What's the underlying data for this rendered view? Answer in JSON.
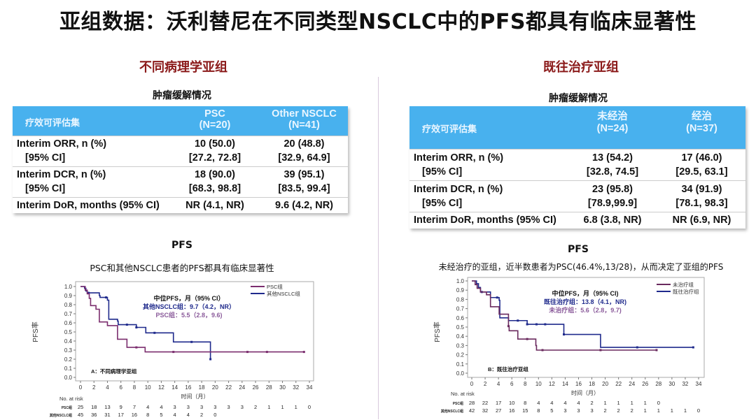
{
  "title": "亚组数据：沃利替尼在不同类型NSCLC中的PFS都具有临床显著性",
  "left": {
    "section": "不同病理学亚组",
    "table_caption": "肿瘤缓解情况",
    "table": {
      "headers": [
        [
          "疗效可评估集",
          ""
        ],
        [
          "PSC",
          "(N=20)"
        ],
        [
          "Other NSCLC",
          "(N=41)"
        ]
      ],
      "rows": [
        {
          "label": "Interim ORR, n (%)",
          "sublabel": "[95% CI]",
          "c1": "10 (50.0)",
          "c1b": "[27.2, 72.8]",
          "c2": "20 (48.8)",
          "c2b": "[32.9, 64.9]"
        },
        {
          "label": "Interim DCR, n (%)",
          "sublabel": "[95% CI]",
          "c1": "18 (90.0)",
          "c1b": "[68.3, 98.8]",
          "c2": "39 (95.1)",
          "c2b": "[83.5, 99.4]"
        },
        {
          "label": "Interim DoR, months (95% CI)",
          "c1": "NR (4.1, NR)",
          "c2": "9.6 (4.2, NR)"
        }
      ]
    },
    "pfs_label": "PFS",
    "pfs_subtitle": "PSC和其他NSCLC患者的PFS都具有临床显著性"
  },
  "right": {
    "section": "既往治疗亚组",
    "table_caption": "肿瘤缓解情况",
    "table": {
      "headers": [
        [
          "疗效可评估集",
          ""
        ],
        [
          "未经治",
          "(N=24)"
        ],
        [
          "经治",
          "(N=37)"
        ]
      ],
      "rows": [
        {
          "label": "Interim ORR, n (%)",
          "sublabel": "[95% CI]",
          "c1": "13 (54.2)",
          "c1b": "[32.8, 74.5]",
          "c2": "17 (46.0)",
          "c2b": "[29.5, 63.1]"
        },
        {
          "label": "Interim DCR, n (%)",
          "sublabel": "[95% CI]",
          "c1": "23 (95.8)",
          "c1b": "[78.9,99.9]",
          "c2": "34 (91.9)",
          "c2b": "[78.1, 98.3]"
        },
        {
          "label": "Interim DoR, months (95% CI)",
          "c1": "6.8 (3.8, NR)",
          "c2": "NR (6.9, NR)"
        }
      ]
    },
    "pfs_label": "PFS",
    "pfs_subtitle": "未经治疗的亚组，近半数患者为PSC(46.4%,13/28)，从而决定了亚组的PFS"
  },
  "chart_data": [
    {
      "type": "line",
      "title": "中位PFS，月（95% CI）",
      "panel_label": "A：不同病理学亚组",
      "xlabel": "时间（月）",
      "ylabel": "PFS率",
      "xlim": [
        0,
        34
      ],
      "ylim": [
        0,
        1
      ],
      "xticks": [
        0,
        2,
        4,
        6,
        8,
        10,
        12,
        14,
        16,
        18,
        20,
        22,
        24,
        26,
        28,
        30,
        32,
        34
      ],
      "yticks": [
        "0.0",
        "0.1",
        "0.2",
        "0.3",
        "0.4",
        "0.5",
        "0.6",
        "0.7",
        "0.8",
        "0.9",
        "1.0"
      ],
      "risk_label": "No. at risk",
      "series": [
        {
          "name": "PSC组",
          "color": "#7b2d6e",
          "median_text": "PSC组：5.5（2.8，9.6)",
          "steps": [
            [
              0,
              1
            ],
            [
              0.7,
              0.96
            ],
            [
              1.0,
              0.92
            ],
            [
              1.3,
              0.87
            ],
            [
              1.5,
              0.79
            ],
            [
              2.3,
              0.75
            ],
            [
              2.8,
              0.61
            ],
            [
              4.0,
              0.57
            ],
            [
              5.5,
              0.42
            ],
            [
              6.9,
              0.33
            ],
            [
              9.6,
              0.28
            ],
            [
              33.2,
              0.28
            ]
          ],
          "censored": [
            8.3,
            13.8,
            24.8,
            27.7,
            33.2
          ],
          "risk_name": "PSC组",
          "at_risk": [
            "25",
            "18",
            "13",
            "9",
            "7",
            "4",
            "4",
            "3",
            "3",
            "3",
            "3",
            "3",
            "3",
            "2",
            "1",
            "1",
            "1",
            "0"
          ]
        },
        {
          "name": "其他NSCLC组",
          "color": "#1f2a8c",
          "median_text": "其他NSCLC组：9.7（4.2，NR）",
          "steps": [
            [
              0,
              1
            ],
            [
              0.6,
              0.98
            ],
            [
              0.8,
              0.95
            ],
            [
              1.0,
              0.93
            ],
            [
              2.8,
              0.9
            ],
            [
              2.9,
              0.88
            ],
            [
              4.0,
              0.85
            ],
            [
              4.2,
              0.64
            ],
            [
              5.5,
              0.62
            ],
            [
              5.6,
              0.58
            ],
            [
              8.3,
              0.55
            ],
            [
              9.7,
              0.49
            ],
            [
              13.8,
              0.39
            ],
            [
              19.3,
              0.39
            ],
            [
              19.3,
              0.2
            ]
          ],
          "censored": [
            1.2,
            3.8,
            6.9,
            8.3,
            11.0,
            16.5,
            19.3
          ],
          "risk_name": "其他NSCLC组",
          "at_risk": [
            "45",
            "36",
            "31",
            "17",
            "16",
            "8",
            "5",
            "4",
            "4",
            "2",
            "0"
          ]
        }
      ]
    },
    {
      "type": "line",
      "title": "中位PFS，月（95% CI)",
      "panel_label": "B：既往治疗亚组",
      "xlabel": "时间（月）",
      "ylabel": "PFS率",
      "xlim": [
        0,
        34
      ],
      "ylim": [
        0,
        1
      ],
      "xticks": [
        0,
        2,
        4,
        6,
        8,
        10,
        12,
        14,
        16,
        18,
        20,
        22,
        24,
        26,
        28,
        30,
        32,
        34
      ],
      "yticks": [
        "0.0",
        "0.1",
        "0.2",
        "0.3",
        "0.4",
        "0.5",
        "0.6",
        "0.7",
        "0.8",
        "0.9",
        "1.0"
      ],
      "risk_label": "No. at risk",
      "series": [
        {
          "name": "未治疗组",
          "color": "#6a2a5e",
          "median_text": "未治疗组：5.6（2.8，9.7)",
          "steps": [
            [
              0,
              1
            ],
            [
              0.5,
              0.96
            ],
            [
              0.8,
              0.92
            ],
            [
              1.3,
              0.88
            ],
            [
              2.2,
              0.85
            ],
            [
              2.8,
              0.72
            ],
            [
              4.1,
              0.64
            ],
            [
              5.5,
              0.51
            ],
            [
              5.6,
              0.46
            ],
            [
              6.9,
              0.37
            ],
            [
              9.6,
              0.3
            ],
            [
              9.7,
              0.25
            ],
            [
              27.7,
              0.25
            ]
          ],
          "censored": [
            5.5,
            8.3,
            10.6,
            19.3,
            27.7
          ],
          "risk_name": "PSC组",
          "at_risk": [
            "28",
            "22",
            "17",
            "10",
            "8",
            "4",
            "4",
            "4",
            "4",
            "2",
            "1",
            "1",
            "1",
            "1",
            "0"
          ]
        },
        {
          "name": "既往治疗组",
          "color": "#1f2a8c",
          "median_text": "既往治疗组：13.8（4.1，NR)",
          "steps": [
            [
              0,
              1
            ],
            [
              0.7,
              0.97
            ],
            [
              1.0,
              0.93
            ],
            [
              1.3,
              0.88
            ],
            [
              2.8,
              0.82
            ],
            [
              4.1,
              0.79
            ],
            [
              4.2,
              0.6
            ],
            [
              5.5,
              0.57
            ],
            [
              8.3,
              0.53
            ],
            [
              13.8,
              0.42
            ],
            [
              19.3,
              0.28
            ],
            [
              33.2,
              0.28
            ]
          ],
          "censored": [
            1.5,
            3.8,
            6.9,
            8.3,
            9.7,
            11.0,
            13.8,
            24.8,
            33.2
          ],
          "risk_name": "其他NSCLC组",
          "at_risk": [
            "42",
            "32",
            "27",
            "16",
            "15",
            "8",
            "5",
            "3",
            "3",
            "3",
            "2",
            "2",
            "2",
            "1",
            "1",
            "1",
            "1",
            "0"
          ]
        }
      ]
    }
  ]
}
